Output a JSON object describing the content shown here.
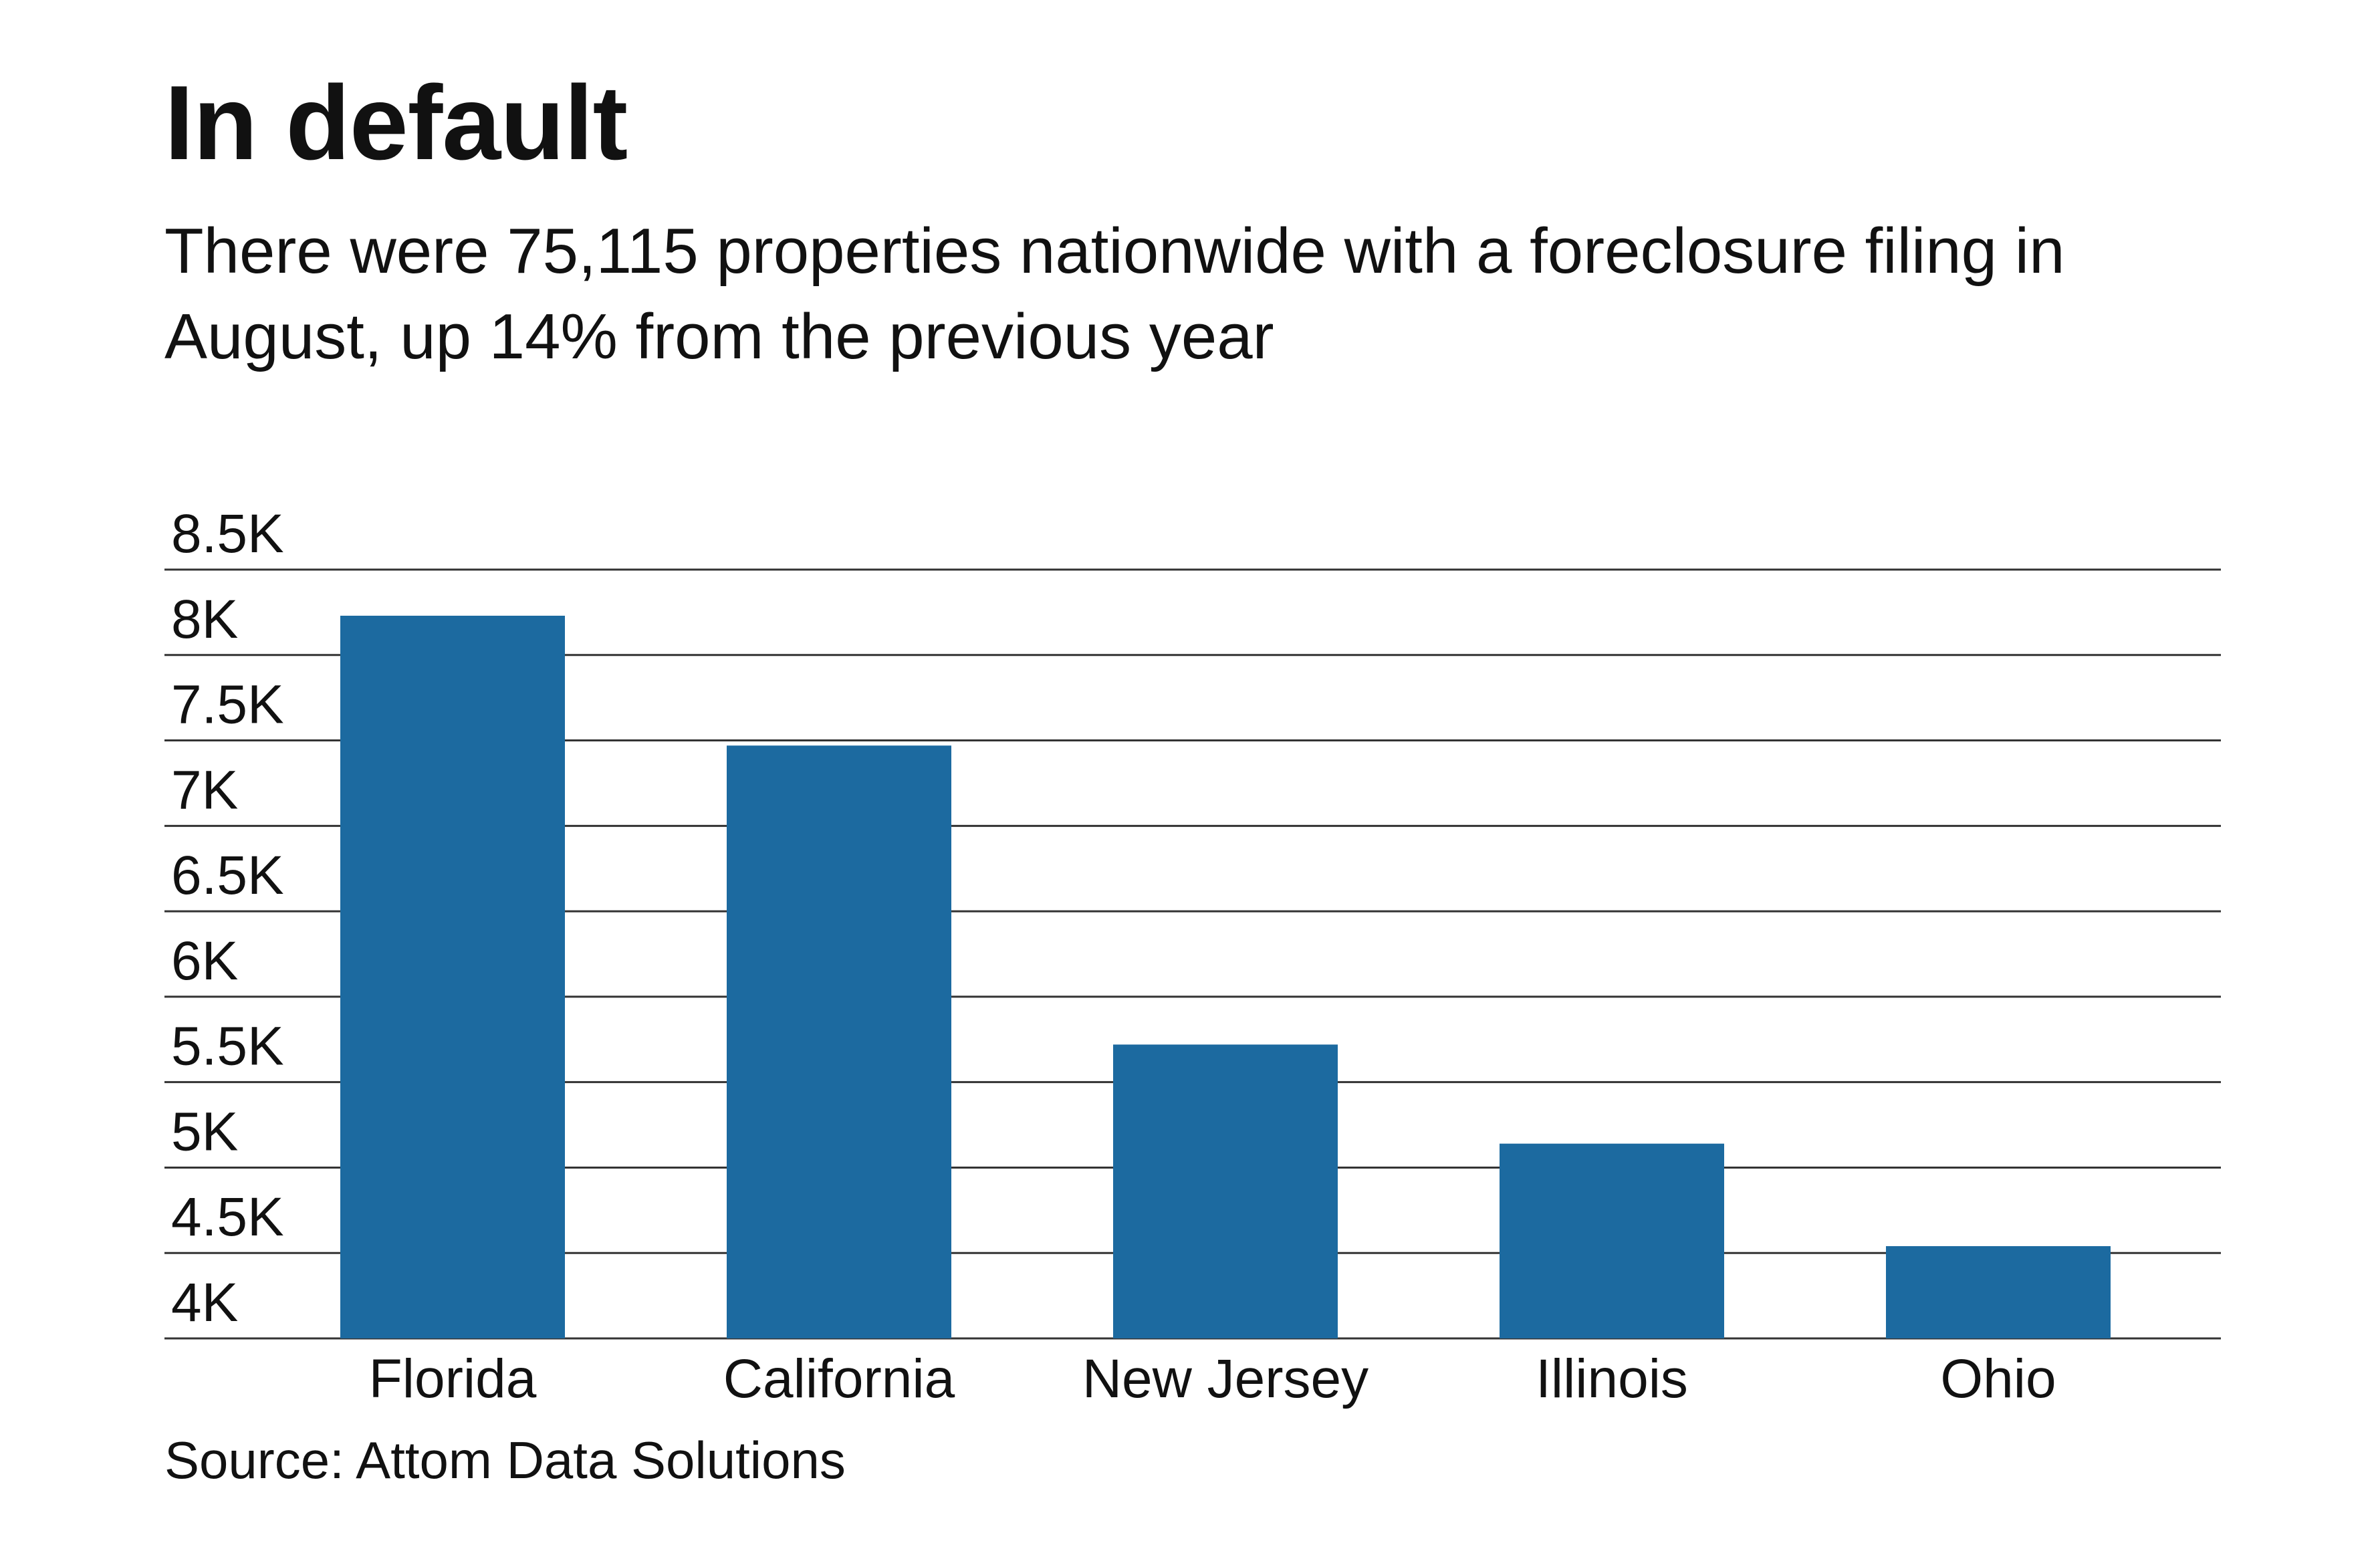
{
  "title": "In default",
  "subtitle": "There were 75,115 properties nationwide with a foreclosure filing in August, up 14% from the previous year",
  "source": "Source: Attom Data Solutions",
  "colors": {
    "bar": "#1c6aa0",
    "grid": "#333333",
    "text": "#111111"
  },
  "chart_data": {
    "type": "bar",
    "categories": [
      "Florida",
      "California",
      "New Jersey",
      "Illinois",
      "Ohio"
    ],
    "values": [
      8230,
      7470,
      5720,
      5140,
      4540
    ],
    "ylim": [
      4000,
      8500
    ],
    "yticks": [
      4000,
      4500,
      5000,
      5500,
      6000,
      6500,
      7000,
      7500,
      8000,
      8500
    ],
    "ytick_labels": [
      "4K",
      "4.5K",
      "5K",
      "5.5K",
      "6K",
      "6.5K",
      "7K",
      "7.5K",
      "8K",
      "8.5K"
    ],
    "grid": true,
    "xlabel": "",
    "ylabel": ""
  }
}
